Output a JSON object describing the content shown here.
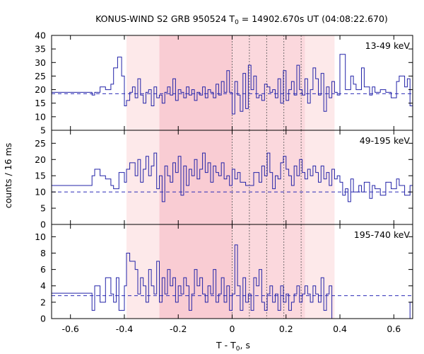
{
  "chart_data": {
    "type": "line",
    "title": "KONUS-WIND S2 GRB 950524 T",
    "title_sub": "0",
    "title_rest": " = 14902.670s UT (04:08:22.670)",
    "xlabel": "T - T",
    "xlabel_sub": "0",
    "xlabel_rest": ", s",
    "ylabel": "counts / 16 ms",
    "xlim": [
      -0.67,
      0.67
    ],
    "xticks": [
      -0.6,
      -0.4,
      -0.2,
      0,
      0.2,
      0.4,
      0.6
    ],
    "xtick_labels": [
      "-0.6",
      "-0.4",
      "-0.2",
      "0",
      "0.2",
      "0.4",
      "0.6"
    ],
    "light_band": [
      -0.392,
      0.38
    ],
    "dark_band": [
      -0.27,
      0.0
    ],
    "mid_band": [
      0.0,
      0.27
    ],
    "vlines": [
      0.0,
      0.064,
      0.128,
      0.192,
      0.256
    ],
    "panels": [
      {
        "label": "13-49 keV",
        "ylim": [
          5,
          40
        ],
        "yticks": [
          5,
          10,
          15,
          20,
          25,
          30,
          35,
          40
        ],
        "ytick_labels": [
          "5",
          "10",
          "15",
          "20",
          "25",
          "30",
          "35",
          "40"
        ],
        "background": 18.5,
        "x": [
          -0.67,
          -0.52,
          -0.51,
          -0.49,
          -0.47,
          -0.45,
          -0.44,
          -0.425,
          -0.41,
          -0.4,
          -0.392,
          -0.38,
          -0.37,
          -0.36,
          -0.35,
          -0.34,
          -0.33,
          -0.32,
          -0.31,
          -0.3,
          -0.29,
          -0.28,
          -0.27,
          -0.26,
          -0.25,
          -0.24,
          -0.23,
          -0.22,
          -0.21,
          -0.2,
          -0.19,
          -0.18,
          -0.17,
          -0.16,
          -0.15,
          -0.14,
          -0.13,
          -0.12,
          -0.11,
          -0.1,
          -0.09,
          -0.08,
          -0.07,
          -0.06,
          -0.05,
          -0.04,
          -0.03,
          -0.02,
          -0.01,
          0.0,
          0.01,
          0.02,
          0.03,
          0.04,
          0.05,
          0.06,
          0.07,
          0.08,
          0.09,
          0.1,
          0.11,
          0.12,
          0.13,
          0.14,
          0.15,
          0.16,
          0.17,
          0.18,
          0.19,
          0.2,
          0.21,
          0.22,
          0.23,
          0.24,
          0.25,
          0.26,
          0.27,
          0.28,
          0.29,
          0.3,
          0.31,
          0.32,
          0.33,
          0.34,
          0.35,
          0.36,
          0.37,
          0.38,
          0.39,
          0.4,
          0.42,
          0.44,
          0.45,
          0.46,
          0.48,
          0.49,
          0.51,
          0.52,
          0.53,
          0.55,
          0.57,
          0.59,
          0.61,
          0.62,
          0.64,
          0.65,
          0.66
        ],
        "y": [
          19,
          18,
          19,
          21,
          20,
          22,
          28,
          32,
          25,
          14,
          16,
          19,
          21,
          17,
          24,
          18,
          15,
          19,
          20,
          14,
          21,
          17,
          18,
          15,
          19,
          21,
          18,
          24,
          16,
          20,
          19,
          17,
          21,
          18,
          20,
          16,
          19,
          18,
          21,
          17,
          20,
          19,
          17,
          22,
          18,
          23,
          19,
          27,
          19,
          11,
          23,
          18,
          12,
          26,
          13,
          29,
          20,
          25,
          17,
          18,
          16,
          22,
          21,
          19,
          20,
          17,
          24,
          15,
          27,
          16,
          20,
          23,
          18,
          29,
          20,
          18,
          24,
          15,
          20,
          28,
          24,
          18,
          26,
          12,
          21,
          17,
          23,
          19,
          18,
          33,
          20,
          25,
          22,
          20,
          28,
          21,
          18,
          21,
          19,
          20,
          19,
          17,
          23,
          25,
          21,
          24,
          14
        ]
      },
      {
        "label": "49-195 keV",
        "ylim": [
          0,
          29
        ],
        "yticks": [
          0,
          5,
          10,
          15,
          20,
          25
        ],
        "ytick_labels": [
          "0",
          "5",
          "10",
          "15",
          "20",
          "25"
        ],
        "background": 10,
        "x": [
          -0.67,
          -0.52,
          -0.51,
          -0.49,
          -0.47,
          -0.45,
          -0.44,
          -0.42,
          -0.4,
          -0.392,
          -0.38,
          -0.36,
          -0.35,
          -0.34,
          -0.33,
          -0.32,
          -0.31,
          -0.3,
          -0.29,
          -0.28,
          -0.27,
          -0.26,
          -0.25,
          -0.24,
          -0.23,
          -0.22,
          -0.21,
          -0.2,
          -0.19,
          -0.18,
          -0.17,
          -0.16,
          -0.15,
          -0.14,
          -0.13,
          -0.12,
          -0.11,
          -0.1,
          -0.09,
          -0.08,
          -0.07,
          -0.06,
          -0.05,
          -0.04,
          -0.03,
          -0.02,
          -0.01,
          0.0,
          0.01,
          0.02,
          0.03,
          0.05,
          0.08,
          0.1,
          0.11,
          0.12,
          0.13,
          0.14,
          0.15,
          0.16,
          0.17,
          0.18,
          0.19,
          0.2,
          0.21,
          0.22,
          0.23,
          0.24,
          0.25,
          0.26,
          0.27,
          0.28,
          0.29,
          0.3,
          0.31,
          0.32,
          0.33,
          0.34,
          0.35,
          0.36,
          0.37,
          0.38,
          0.39,
          0.4,
          0.41,
          0.42,
          0.43,
          0.44,
          0.45,
          0.47,
          0.48,
          0.49,
          0.51,
          0.52,
          0.53,
          0.55,
          0.57,
          0.59,
          0.61,
          0.62,
          0.64,
          0.66
        ],
        "y": [
          12,
          15,
          17,
          15,
          14,
          12,
          11,
          16,
          13,
          17,
          19,
          15,
          20,
          13,
          17,
          21,
          15,
          18,
          22,
          11,
          15,
          7,
          18,
          15,
          13,
          19,
          16,
          21,
          9,
          18,
          12,
          17,
          15,
          20,
          14,
          17,
          22,
          16,
          19,
          13,
          18,
          16,
          15,
          19,
          14,
          15,
          12,
          17,
          14,
          16,
          13,
          12,
          16,
          13,
          18,
          15,
          22,
          16,
          11,
          15,
          14,
          19,
          21,
          17,
          15,
          12,
          18,
          15,
          20,
          16,
          14,
          17,
          15,
          18,
          16,
          13,
          18,
          14,
          16,
          12,
          17,
          14,
          15,
          13,
          9,
          11,
          7,
          14,
          10,
          12,
          10,
          13,
          8,
          12,
          11,
          9,
          13,
          11,
          14,
          12,
          9,
          12
        ]
      },
      {
        "label": "195-740 keV",
        "ylim": [
          0,
          11.5
        ],
        "yticks": [
          0,
          2,
          4,
          6,
          8,
          10
        ],
        "ytick_labels": [
          "0",
          "2",
          "4",
          "6",
          "8",
          "10"
        ],
        "background": 2.8,
        "x": [
          -0.67,
          -0.52,
          -0.51,
          -0.49,
          -0.47,
          -0.45,
          -0.44,
          -0.43,
          -0.42,
          -0.4,
          -0.392,
          -0.38,
          -0.36,
          -0.35,
          -0.34,
          -0.33,
          -0.32,
          -0.31,
          -0.3,
          -0.29,
          -0.28,
          -0.27,
          -0.26,
          -0.25,
          -0.24,
          -0.23,
          -0.22,
          -0.21,
          -0.2,
          -0.19,
          -0.18,
          -0.17,
          -0.16,
          -0.15,
          -0.14,
          -0.13,
          -0.12,
          -0.11,
          -0.1,
          -0.09,
          -0.08,
          -0.07,
          -0.06,
          -0.05,
          -0.04,
          -0.03,
          -0.02,
          -0.01,
          0.0,
          0.01,
          0.02,
          0.03,
          0.04,
          0.05,
          0.06,
          0.07,
          0.08,
          0.09,
          0.1,
          0.11,
          0.12,
          0.13,
          0.14,
          0.15,
          0.16,
          0.17,
          0.18,
          0.19,
          0.2,
          0.21,
          0.22,
          0.23,
          0.24,
          0.25,
          0.26,
          0.27,
          0.28,
          0.29,
          0.3,
          0.31,
          0.32,
          0.33,
          0.34,
          0.35,
          0.36,
          0.37,
          0.38,
          0.39,
          0.4,
          0.42,
          0.44,
          0.46,
          0.48,
          0.5,
          0.52,
          0.54,
          0.56,
          0.58,
          0.6,
          0.62,
          0.64,
          0.66
        ],
        "y": [
          3.1,
          1,
          4,
          2,
          5,
          3,
          2,
          5,
          1,
          4,
          8,
          7,
          6,
          3,
          5,
          4,
          2,
          6,
          4,
          3,
          7,
          2,
          5,
          3,
          6,
          4,
          5,
          2,
          4,
          3,
          5,
          4,
          1,
          3,
          6,
          4,
          5,
          3,
          2,
          4,
          3,
          6,
          2,
          3,
          5,
          2,
          4,
          1,
          3,
          9,
          4,
          1,
          5,
          2,
          3,
          1,
          5,
          4,
          6,
          2,
          1,
          3,
          4,
          2,
          3,
          1,
          4,
          2,
          3,
          1,
          2,
          3,
          4,
          2,
          3,
          4,
          3,
          2,
          4,
          3,
          2,
          5,
          1,
          3,
          4,
          0,
          0,
          0,
          0,
          0,
          0,
          0,
          0,
          0,
          0,
          0,
          0,
          0,
          0,
          0,
          0,
          2
        ]
      }
    ]
  }
}
